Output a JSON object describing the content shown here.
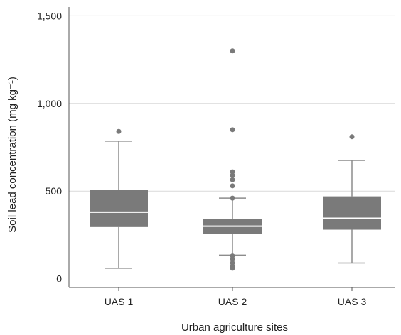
{
  "chart_data": {
    "type": "box",
    "xlabel": "Urban agriculture sites",
    "ylabel": "Soil lead concentration (mg kg⁻¹)",
    "ylim": [
      -50,
      1550
    ],
    "yticks": [
      0,
      500,
      1000,
      1500
    ],
    "ytick_labels": [
      "0",
      "500",
      "1,000",
      "1,500"
    ],
    "grid": "horizontal",
    "colors": {
      "box": "#7a7a7a",
      "median": "#ffffff",
      "whisker": "#8c8c8c",
      "grid": "#d9d9d9",
      "axis": "#555555"
    },
    "categories": [
      "UAS 1",
      "UAS 2",
      "UAS 3"
    ],
    "boxes": [
      {
        "category": "UAS 1",
        "min": 60,
        "q1": 295,
        "median": 380,
        "q3": 505,
        "max": 785,
        "outliers": [
          840
        ]
      },
      {
        "category": "UAS 2",
        "min": 135,
        "q1": 255,
        "median": 300,
        "q3": 340,
        "max": 460,
        "outliers": [
          1300,
          850,
          610,
          590,
          565,
          530,
          460,
          130,
          110,
          90,
          70,
          60
        ]
      },
      {
        "category": "UAS 3",
        "min": 90,
        "q1": 280,
        "median": 345,
        "q3": 470,
        "max": 675,
        "outliers": [
          810
        ]
      }
    ]
  }
}
